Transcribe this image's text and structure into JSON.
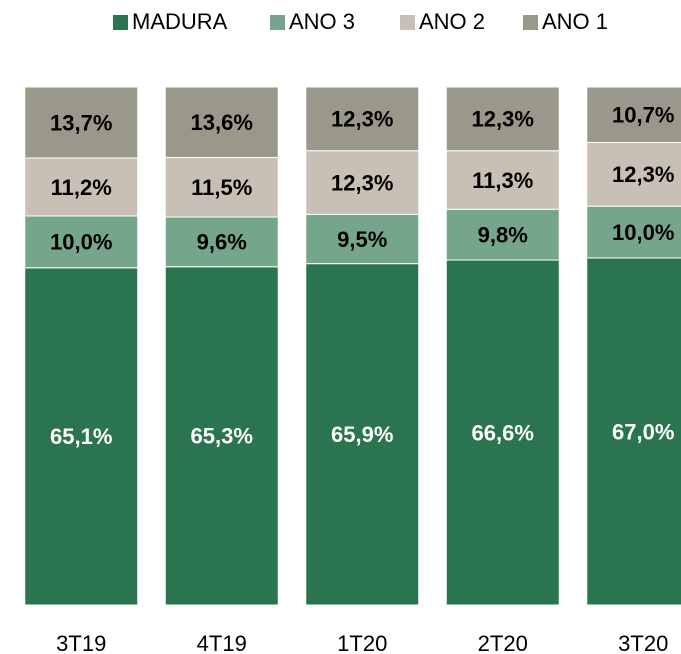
{
  "chart_data": {
    "type": "stacked_bar",
    "categories": [
      "3T19",
      "4T19",
      "1T20",
      "2T20",
      "3T20"
    ],
    "series": [
      {
        "name": "MADURA",
        "color": "#2a7550",
        "values": [
          65.1,
          65.3,
          65.9,
          66.6,
          67.0
        ],
        "value_labels": [
          "65,1%",
          "65,3%",
          "65,9%",
          "66,6%",
          "67,0%"
        ]
      },
      {
        "name": "ANO 3",
        "color": "#75a58a",
        "values": [
          10.0,
          9.6,
          9.5,
          9.8,
          10.0
        ],
        "value_labels": [
          "10,0%",
          "9,6%",
          "9,5%",
          "9,8%",
          "10,0%"
        ]
      },
      {
        "name": "ANO 2",
        "color": "#c8c0b4",
        "values": [
          11.2,
          11.5,
          12.3,
          11.3,
          12.3
        ],
        "value_labels": [
          "11,2%",
          "11,5%",
          "12,3%",
          "11,3%",
          "12,3%"
        ]
      },
      {
        "name": "ANO 1",
        "color": "#9a978b",
        "values": [
          13.7,
          13.6,
          12.3,
          12.3,
          10.7
        ],
        "value_labels": [
          "13,7%",
          "13,6%",
          "12,3%",
          "12,3%",
          "10,7%"
        ]
      }
    ]
  }
}
